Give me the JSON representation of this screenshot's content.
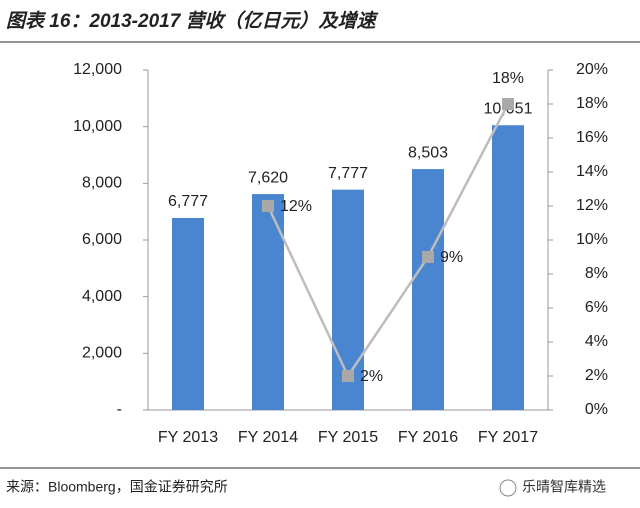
{
  "chart_data": {
    "type": "bar",
    "title": "图表 16：2013-2017 营收（亿日元）及增速",
    "source": "来源：Bloomberg，国金证券研究所",
    "watermark": "乐晴智库精选",
    "categories": [
      "FY 2013",
      "FY 2014",
      "FY 2015",
      "FY 2016",
      "FY 2017"
    ],
    "series": [
      {
        "name": "营收",
        "type": "bar",
        "color": "#4a86d0",
        "values": [
          6777,
          7620,
          7777,
          8503,
          10051
        ],
        "value_labels": [
          "6,777",
          "7,620",
          "7,777",
          "8,503",
          "10,051"
        ]
      },
      {
        "name": "增速",
        "type": "line",
        "axis": "y2",
        "color": "#bdbdbd",
        "marker_color": "#a9a9a9",
        "values": [
          null,
          12,
          2,
          9,
          18
        ],
        "value_labels": [
          null,
          "12%",
          "2%",
          "9%",
          "18%"
        ]
      }
    ],
    "ylim": [
      0,
      12000
    ],
    "yticks": [
      {
        "value": 0,
        "label": "-"
      },
      {
        "value": 2000,
        "label": "2,000"
      },
      {
        "value": 4000,
        "label": "4,000"
      },
      {
        "value": 6000,
        "label": "6,000"
      },
      {
        "value": 8000,
        "label": "8,000"
      },
      {
        "value": 10000,
        "label": "10,000"
      },
      {
        "value": 12000,
        "label": "12,000"
      }
    ],
    "y2lim": [
      0,
      20
    ],
    "y2ticks": [
      {
        "value": 0,
        "label": "0%"
      },
      {
        "value": 2,
        "label": "2%"
      },
      {
        "value": 4,
        "label": "4%"
      },
      {
        "value": 6,
        "label": "6%"
      },
      {
        "value": 8,
        "label": "8%"
      },
      {
        "value": 10,
        "label": "10%"
      },
      {
        "value": 12,
        "label": "12%"
      },
      {
        "value": 14,
        "label": "14%"
      },
      {
        "value": 16,
        "label": "16%"
      },
      {
        "value": 18,
        "label": "18%"
      },
      {
        "value": 20,
        "label": "20%"
      }
    ],
    "grid": false
  }
}
